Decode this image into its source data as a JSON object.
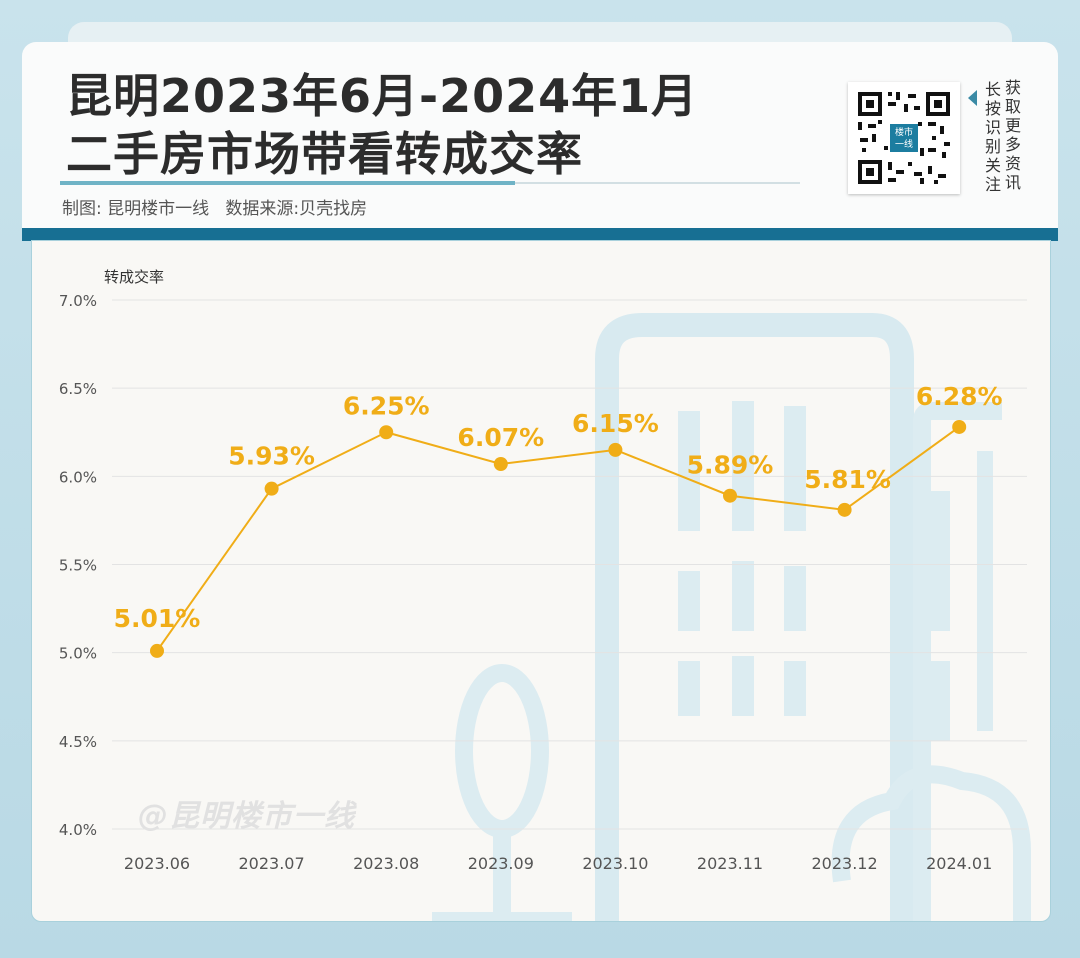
{
  "header": {
    "title_line1": "昆明2023年6月-2024年1月",
    "title_line2": "二手房市场带看转成交率",
    "credits": "制图: 昆明楼市一线   数据来源:贝壳找房",
    "qr_col1": "获取更多资讯",
    "qr_col2": "长按识别关注",
    "qr_center_text": "楼市一线"
  },
  "watermark": "@昆明楼市一线",
  "colors": {
    "accent": "#f0ad17",
    "band": "#176f93",
    "deco": "#d6e9ef"
  },
  "chart_data": {
    "type": "line",
    "ylabel": "转成交率",
    "xlabel": "",
    "categories": [
      "2023.06",
      "2023.07",
      "2023.08",
      "2023.09",
      "2023.10",
      "2023.11",
      "2023.12",
      "2024.01"
    ],
    "series": [
      {
        "values": [
          5.01,
          5.93,
          6.25,
          6.07,
          6.15,
          5.89,
          5.81,
          6.28
        ],
        "labels": [
          "5.01%",
          "5.93%",
          "6.25%",
          "6.07%",
          "6.15%",
          "5.89%",
          "5.81%",
          "6.28%"
        ]
      }
    ],
    "y_ticks": [
      {
        "value": 4.0,
        "label": "4.0%"
      },
      {
        "value": 4.5,
        "label": "4.5%"
      },
      {
        "value": 5.0,
        "label": "5.0%"
      },
      {
        "value": 5.5,
        "label": "5.5%"
      },
      {
        "value": 6.0,
        "label": "6.0%"
      },
      {
        "value": 6.5,
        "label": "6.5%"
      },
      {
        "value": 7.0,
        "label": "7.0%"
      }
    ],
    "ylim": [
      4.0,
      7.0
    ],
    "grid": true,
    "legend": "none"
  }
}
